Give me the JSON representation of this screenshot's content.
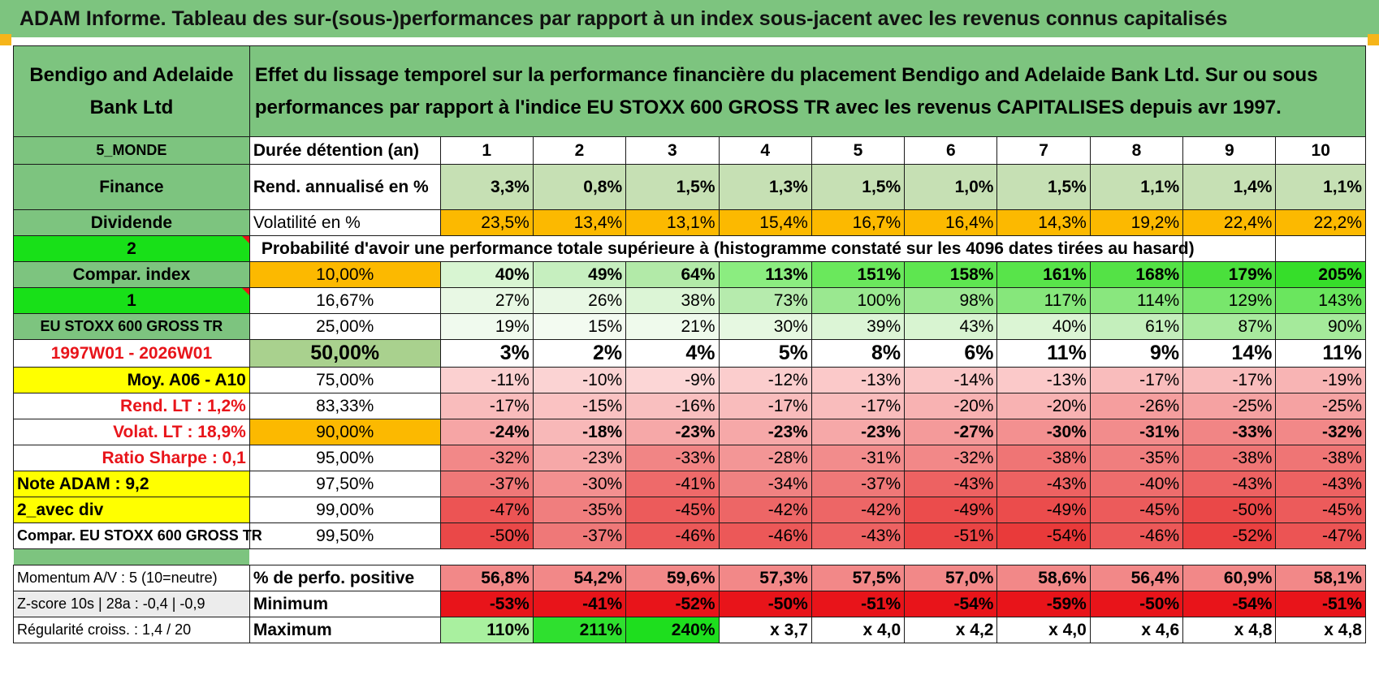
{
  "title": "ADAM Informe. Tableau des sur-(sous-)performances par rapport à un index sous-jacent avec les revenus connus capitalisés",
  "header": {
    "name": "Bendigo and Adelaide Bank Ltd",
    "description": "Effet du lissage temporel sur la performance financière du placement Bendigo and Adelaide Bank Ltd. Sur ou sous performances par rapport à l'indice EU STOXX 600 GROSS TR avec les revenus CAPITALISES depuis avr 1997."
  },
  "left_labels": {
    "region": "5_MONDE",
    "sector": "Finance",
    "style": "Dividende",
    "val2": "2",
    "compar_index": "Compar. index",
    "val1": "1",
    "index_name": "EU STOXX 600 GROSS TR",
    "period": "1997W01 - 2026W01",
    "moy": "Moy. A06 - A10",
    "rend_lt": "Rend. LT :    1,2%",
    "volat_lt": "Volat. LT :    18,9%",
    "sharpe": "Ratio Sharpe :     0,1",
    "note": "Note ADAM : 9,2",
    "avec_div": "2_avec div",
    "compar_stoxx": "Compar. EU STOXX 600 GROSS TR"
  },
  "row_labels": {
    "duree": "Durée détention (an)",
    "rend": "Rend. annualisé en %",
    "volat": "Volatilité en %",
    "proba": "Probabilité d'avoir une performance totale supérieure à (histogramme constaté sur les 4096 dates tirées au hasard)"
  },
  "years": [
    "1",
    "2",
    "3",
    "4",
    "5",
    "6",
    "7",
    "8",
    "9",
    "10"
  ],
  "rend": [
    "3,3%",
    "0,8%",
    "1,5%",
    "1,3%",
    "1,5%",
    "1,0%",
    "1,5%",
    "1,1%",
    "1,4%",
    "1,1%"
  ],
  "volat": [
    "23,5%",
    "13,4%",
    "13,1%",
    "15,4%",
    "16,7%",
    "16,4%",
    "14,3%",
    "19,2%",
    "22,4%",
    "22,2%"
  ],
  "quantile_rows": [
    {
      "q": "10,00%",
      "values": [
        "40%",
        "49%",
        "64%",
        "113%",
        "151%",
        "158%",
        "161%",
        "168%",
        "179%",
        "205%"
      ],
      "colors": [
        "#d8f5d2",
        "#c6efbf",
        "#b2eaa8",
        "#8bed80",
        "#6ae85c",
        "#5ee650",
        "#58e44a",
        "#54e246",
        "#4ae03c",
        "#36de2a"
      ]
    },
    {
      "q": "16,67%",
      "values": [
        "27%",
        "26%",
        "38%",
        "73%",
        "100%",
        "98%",
        "117%",
        "114%",
        "129%",
        "143%"
      ],
      "colors": [
        "#e8f8e4",
        "#e9f8e5",
        "#dcf5d6",
        "#b6ebad",
        "#9ae890",
        "#9ce892",
        "#86e77b",
        "#89e77e",
        "#78e66c",
        "#6ae65e"
      ]
    },
    {
      "q": "25,00%",
      "values": [
        "19%",
        "15%",
        "21%",
        "30%",
        "39%",
        "43%",
        "40%",
        "61%",
        "87%",
        "90%"
      ],
      "colors": [
        "#f0faee",
        "#f3fbf1",
        "#effaec",
        "#e6f8e1",
        "#dcf5d6",
        "#d8f4d1",
        "#dbf5d4",
        "#c4efbc",
        "#a8ea9e",
        "#a5ea9b"
      ]
    },
    {
      "q": "50,00%",
      "values": [
        "3%",
        "2%",
        "4%",
        "5%",
        "8%",
        "6%",
        "11%",
        "9%",
        "14%",
        "11%"
      ],
      "colors": [
        "#ffffff",
        "#ffffff",
        "#ffffff",
        "#ffffff",
        "#ffffff",
        "#ffffff",
        "#ffffff",
        "#ffffff",
        "#ffffff",
        "#ffffff"
      ]
    },
    {
      "q": "75,00%",
      "values": [
        "-11%",
        "-10%",
        "-9%",
        "-12%",
        "-13%",
        "-14%",
        "-13%",
        "-17%",
        "-17%",
        "-19%"
      ],
      "colors": [
        "#fbd0d0",
        "#fbd3d3",
        "#fcd6d6",
        "#fbcdcd",
        "#fbc9c9",
        "#fac6c6",
        "#fbc9c9",
        "#f9bcbc",
        "#f9bcbc",
        "#f8b4b4"
      ]
    },
    {
      "q": "83,33%",
      "values": [
        "-17%",
        "-15%",
        "-16%",
        "-17%",
        "-17%",
        "-20%",
        "-20%",
        "-26%",
        "-25%",
        "-25%"
      ],
      "colors": [
        "#f9bcbc",
        "#fac2c2",
        "#f9bfbf",
        "#f9bcbc",
        "#f9bcbc",
        "#f8b2b2",
        "#f8b2b2",
        "#f59e9e",
        "#f5a2a2",
        "#f5a2a2"
      ]
    },
    {
      "q": "90,00%",
      "values": [
        "-24%",
        "-18%",
        "-23%",
        "-23%",
        "-23%",
        "-27%",
        "-30%",
        "-31%",
        "-33%",
        "-32%"
      ],
      "colors": [
        "#f6a5a5",
        "#f8b8b8",
        "#f6a8a8",
        "#f6a8a8",
        "#f6a8a8",
        "#f49a9a",
        "#f39090",
        "#f28c8c",
        "#f18585",
        "#f28888"
      ]
    },
    {
      "q": "95,00%",
      "values": [
        "-32%",
        "-23%",
        "-33%",
        "-28%",
        "-31%",
        "-32%",
        "-38%",
        "-35%",
        "-38%",
        "-38%"
      ],
      "colors": [
        "#f28888",
        "#f6a8a8",
        "#f18585",
        "#f39696",
        "#f28c8c",
        "#f28888",
        "#ef7575",
        "#f07e7e",
        "#ef7575",
        "#ef7575"
      ]
    },
    {
      "q": "97,50%",
      "values": [
        "-37%",
        "-30%",
        "-41%",
        "-34%",
        "-37%",
        "-43%",
        "-43%",
        "-40%",
        "-43%",
        "-43%"
      ],
      "colors": [
        "#ef7878",
        "#f39090",
        "#ee6a6a",
        "#f08282",
        "#ef7878",
        "#ed6262",
        "#ed6262",
        "#ee6d6d",
        "#ed6262",
        "#ed6262"
      ]
    },
    {
      "q": "99,00%",
      "values": [
        "-47%",
        "-35%",
        "-45%",
        "-42%",
        "-42%",
        "-49%",
        "-49%",
        "-45%",
        "-50%",
        "-45%"
      ],
      "colors": [
        "#ec5454",
        "#f07e7e",
        "#ec5b5b",
        "#ed6666",
        "#ed6666",
        "#eb4c4c",
        "#eb4c4c",
        "#ec5b5b",
        "#ea4848",
        "#ec5b5b"
      ]
    },
    {
      "q": "99,50%",
      "values": [
        "-50%",
        "-37%",
        "-46%",
        "-46%",
        "-43%",
        "-51%",
        "-54%",
        "-46%",
        "-52%",
        "-47%"
      ],
      "colors": [
        "#ea4848",
        "#ef7878",
        "#ec5858",
        "#ec5858",
        "#ed6262",
        "#ea4444",
        "#e93a3a",
        "#ec5858",
        "#ea4040",
        "#ec5454"
      ]
    }
  ],
  "bottom": {
    "momentum": "Momentum A/V : 5 (10=neutre)",
    "zscore": "Z-score 10s | 28a : -0,4 | -0,9",
    "regularite": "Régularité croiss. : 1,4 / 20",
    "pos_label": "% de perfo. positive",
    "min_label": "Minimum",
    "max_label": "Maximum",
    "pos": [
      "56,8%",
      "54,2%",
      "59,6%",
      "57,3%",
      "57,5%",
      "57,0%",
      "58,6%",
      "56,4%",
      "60,9%",
      "58,1%"
    ],
    "min": [
      "-53%",
      "-41%",
      "-52%",
      "-50%",
      "-51%",
      "-54%",
      "-59%",
      "-50%",
      "-54%",
      "-51%"
    ],
    "max": [
      "110%",
      "211%",
      "240%",
      "x 3,7",
      "x 4,0",
      "x 4,2",
      "x 4,0",
      "x 4,6",
      "x 4,8",
      "x 4,8"
    ],
    "max_colors": [
      "#a9f09f",
      "#2fe02f",
      "#1ede1e",
      "#ffffff",
      "#ffffff",
      "#ffffff",
      "#ffffff",
      "#ffffff",
      "#ffffff",
      "#ffffff"
    ]
  },
  "colors": {
    "header_green": "#7dc47f",
    "bright_green": "#18e018",
    "yellow": "#ffff00",
    "orange": "#fcb900",
    "pos_red": "#f28888",
    "min_red": "#e8141a"
  }
}
